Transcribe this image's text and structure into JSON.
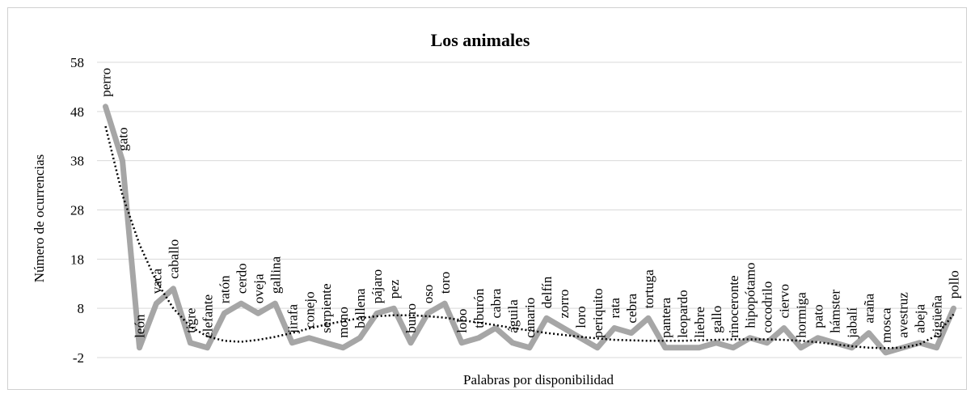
{
  "chart_data": {
    "type": "line",
    "title": "Los animales",
    "xlabel": "Palabras por disponibilidad",
    "ylabel": "Número de ocurrencias",
    "ylim": [
      -2,
      58
    ],
    "yticks": [
      -2,
      8,
      18,
      28,
      38,
      48,
      58
    ],
    "grid": true,
    "series_color": "#a6a6a6",
    "trendline": "polynomial",
    "trendline_color": "#000000",
    "categories": [
      "perro",
      "gato",
      "león",
      "vaca",
      "caballo",
      "tigre",
      "elefante",
      "ratón",
      "cerdo",
      "oveja",
      "gallina",
      "jirafa",
      "conejo",
      "serpiente",
      "mono",
      "ballena",
      "pájaro",
      "pez",
      "burro",
      "oso",
      "toro",
      "lobo",
      "tiburón",
      "cabra",
      "águila",
      "canario",
      "delfín",
      "zorro",
      "loro",
      "periquito",
      "rata",
      "cebra",
      "tortuga",
      "pantera",
      "leopardo",
      "liebre",
      "gallo",
      "rinoceronte",
      "hipopótamo",
      "cocodrilo",
      "ciervo",
      "hormiga",
      "pato",
      "hámster",
      "jabalí",
      "araña",
      "mosca",
      "avestruz",
      "abeja",
      "cigüeña",
      "pollo"
    ],
    "values": [
      49,
      38,
      0,
      9,
      12,
      1,
      0,
      7,
      9,
      7,
      9,
      1,
      2,
      1,
      0,
      2,
      7,
      8,
      1,
      7,
      9,
      1,
      2,
      4,
      1,
      0,
      6,
      4,
      2,
      0,
      4,
      3,
      6,
      0,
      0,
      0,
      1,
      0,
      2,
      1,
      4,
      0,
      2,
      1,
      0,
      3,
      -1,
      0,
      1,
      0,
      8
    ],
    "trend_values": [
      45,
      31,
      21,
      13.5,
      8,
      4.3,
      2.3,
      1.4,
      1.2,
      1.6,
      2.2,
      3,
      3.9,
      4.7,
      5.4,
      6,
      6.4,
      6.6,
      6.6,
      6.4,
      6.1,
      5.6,
      5.1,
      4.6,
      4,
      3.5,
      3,
      2.6,
      2.2,
      1.9,
      1.6,
      1.5,
      1.4,
      1.4,
      1.4,
      1.5,
      1.6,
      1.7,
      1.7,
      1.7,
      1.6,
      1.4,
      1.1,
      0.7,
      0.3,
      0,
      -0.1,
      0,
      0.7,
      2.5,
      6.8
    ]
  }
}
